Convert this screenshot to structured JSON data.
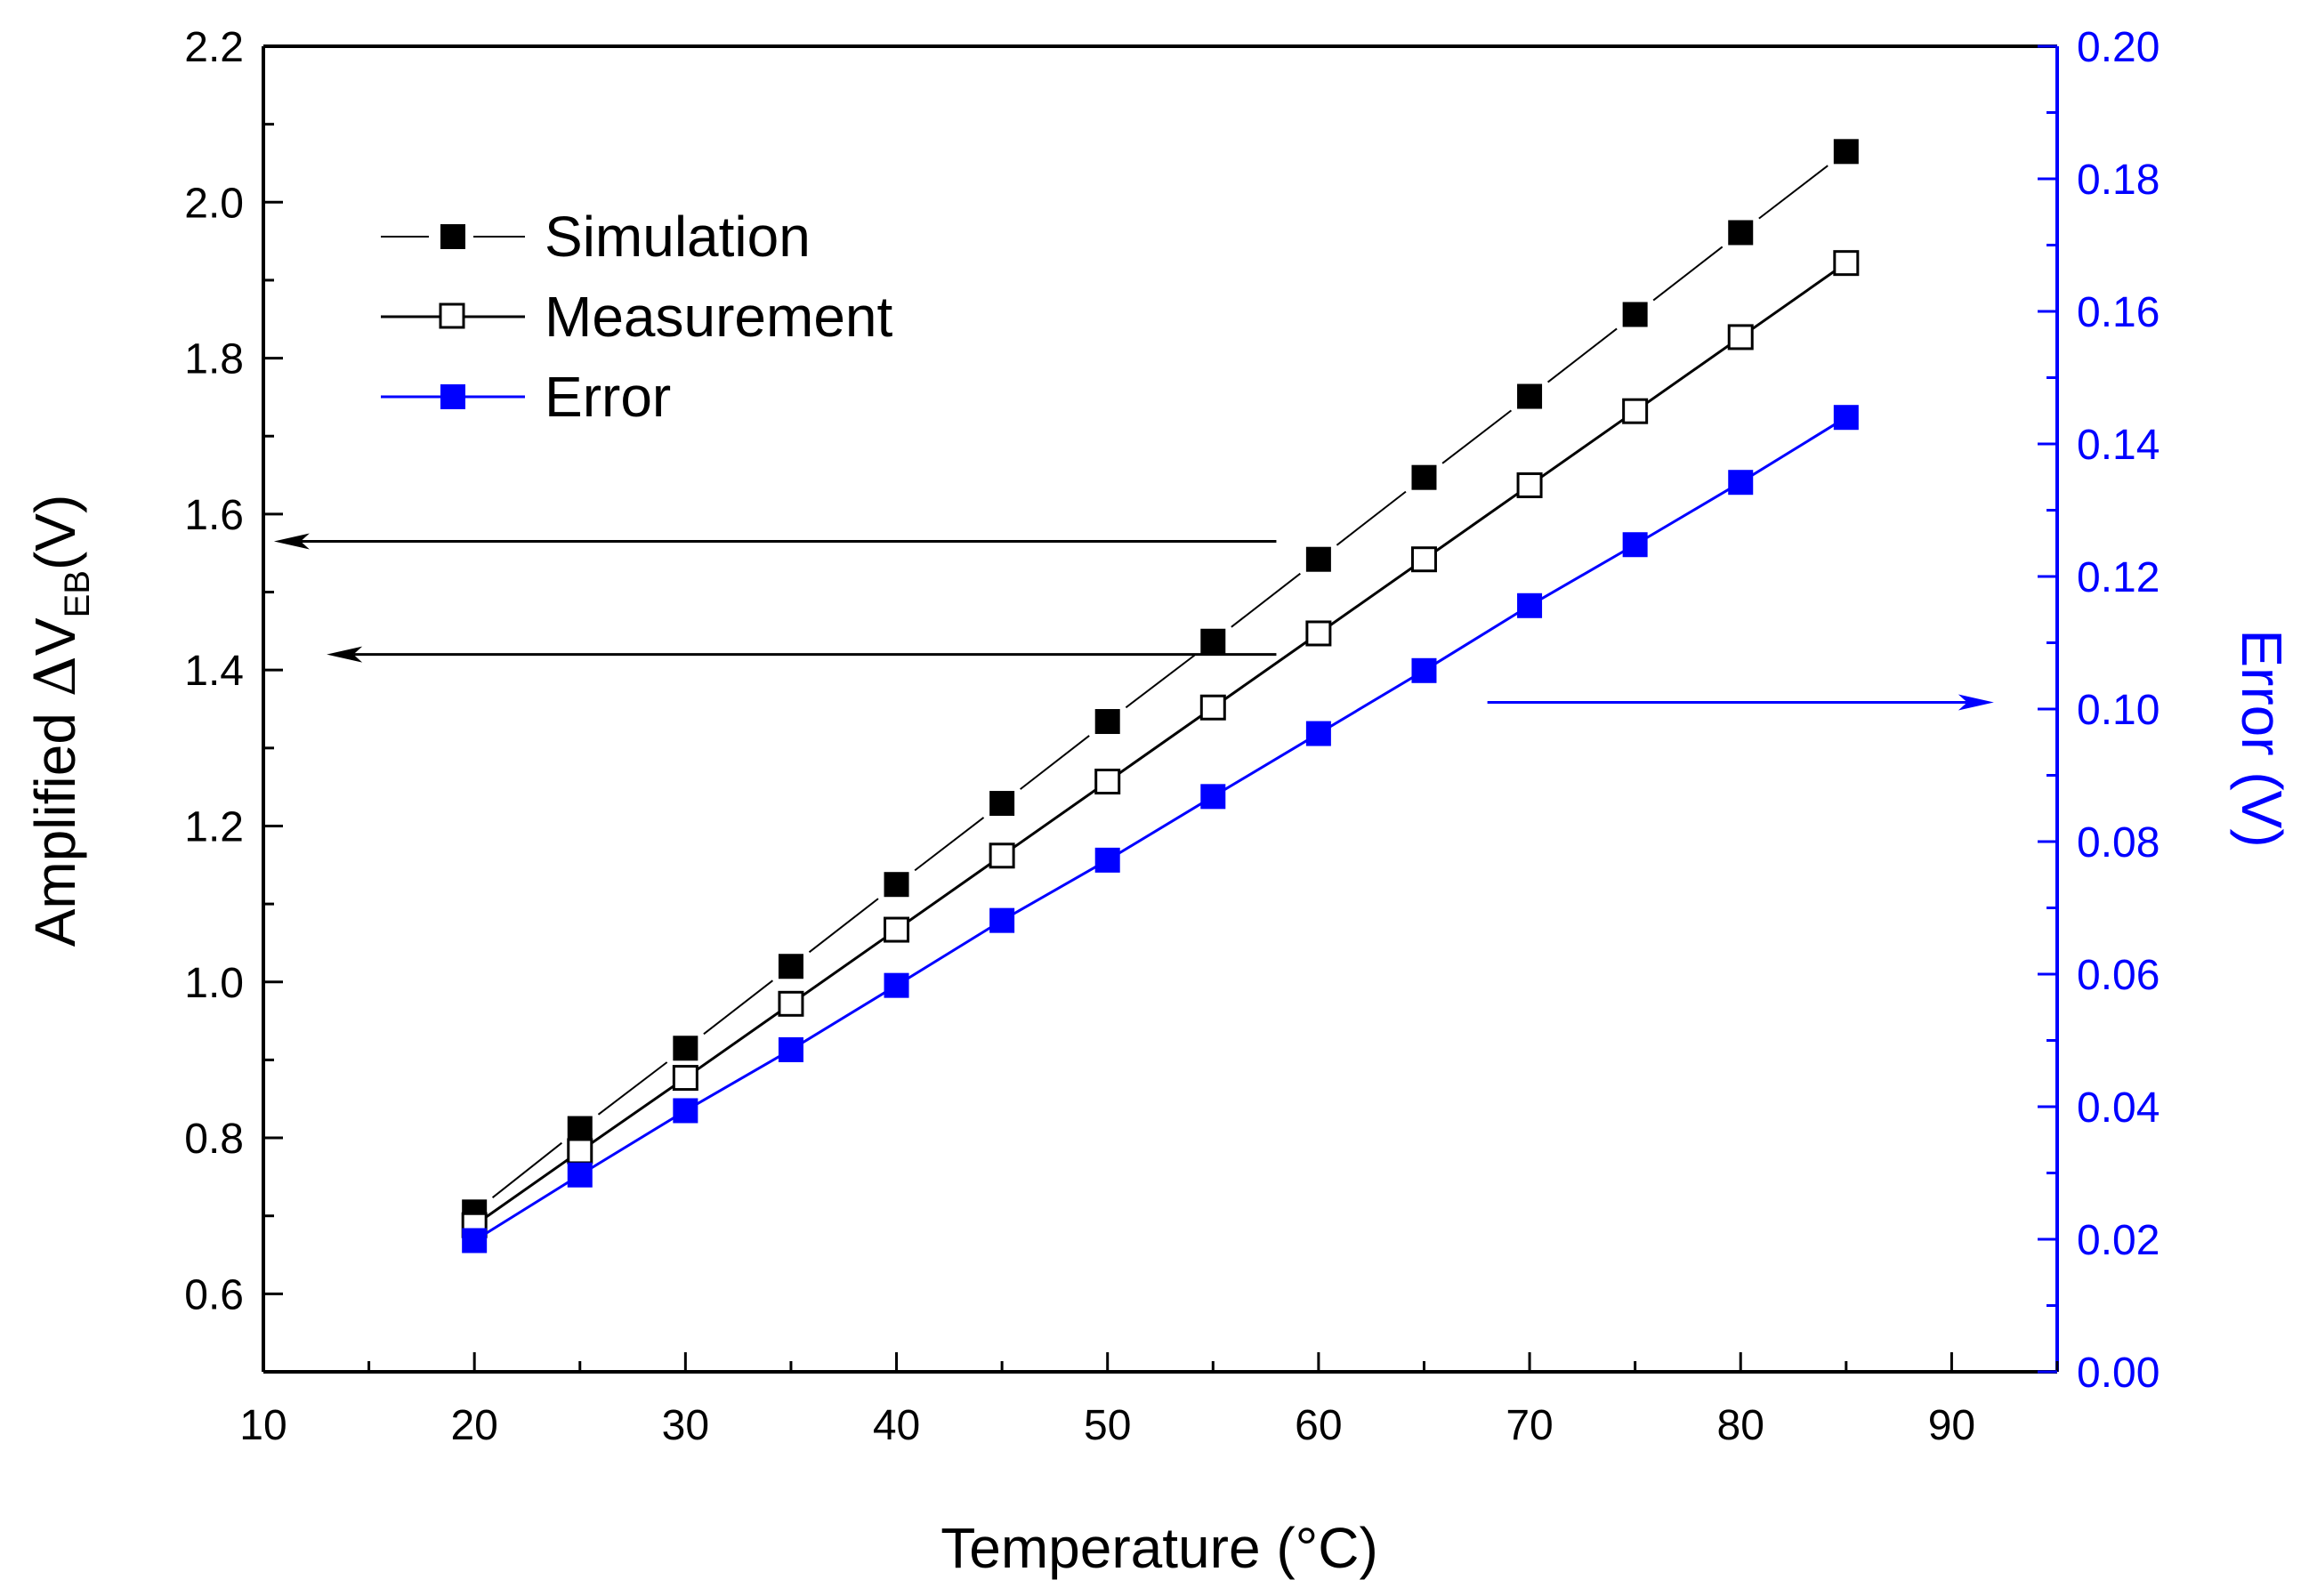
{
  "chart_data": {
    "type": "line",
    "x_label": "Temperature (°C)",
    "y_label_left": {
      "prefix": "Amplified ",
      "delta": "Δ",
      "var": "V",
      "subscript": "EB",
      "suffix": "(V)"
    },
    "y_label_right": "Error (V)",
    "x_range": [
      10,
      95
    ],
    "y_left_range": [
      0.5,
      2.2
    ],
    "y_right_range": [
      0.0,
      0.2
    ],
    "x_ticks": [
      "10",
      "20",
      "30",
      "40",
      "50",
      "60",
      "70",
      "80",
      "90"
    ],
    "y_left_ticks": [
      "0.6",
      "0.8",
      "1.0",
      "1.2",
      "1.4",
      "1.6",
      "1.8",
      "2.0",
      "2.2"
    ],
    "y_right_ticks": [
      "0.00",
      "0.02",
      "0.04",
      "0.06",
      "0.08",
      "0.10",
      "0.12",
      "0.14",
      "0.16",
      "0.18",
      "0.20"
    ],
    "x": [
      20,
      25,
      30,
      35,
      40,
      45,
      50,
      55,
      60,
      65,
      70,
      75,
      80,
      85
    ],
    "series": [
      {
        "name": "Simulation",
        "axis": "left",
        "marker": "filled-square",
        "color": "#000000",
        "line": "gapped",
        "values": [
          0.705,
          0.812,
          0.915,
          1.02,
          1.125,
          1.229,
          1.334,
          1.437,
          1.542,
          1.647,
          1.751,
          1.856,
          1.961,
          2.065
        ]
      },
      {
        "name": "Measurement",
        "axis": "left",
        "marker": "open-square",
        "color": "#000000",
        "line": "solid",
        "values": [
          0.688,
          0.783,
          0.877,
          0.972,
          1.067,
          1.162,
          1.257,
          1.352,
          1.447,
          1.542,
          1.637,
          1.732,
          1.827,
          1.922
        ]
      },
      {
        "name": "Error",
        "axis": "right",
        "marker": "filled-square",
        "color": "#0000ff",
        "line": "solid",
        "values": [
          0.0198,
          0.0297,
          0.0394,
          0.0486,
          0.0583,
          0.0681,
          0.0772,
          0.0868,
          0.0963,
          0.1058,
          0.1156,
          0.1248,
          0.1342,
          0.144
        ]
      }
    ],
    "annotations": [
      {
        "type": "arrow",
        "points_to": "left-axis",
        "color": "#000000",
        "from_x": 58,
        "to_x": 10.5,
        "y_left": 1.565
      },
      {
        "type": "arrow",
        "points_to": "left-axis",
        "color": "#000000",
        "from_x": 58,
        "to_x": 13,
        "y_left": 1.42
      },
      {
        "type": "arrow",
        "points_to": "right-axis",
        "color": "#0000ff",
        "from_x": 68,
        "to_x": 92,
        "y_right": 0.101
      }
    ],
    "legend_position": "top-left"
  },
  "colors": {
    "left": "#000000",
    "right": "#0000ff"
  }
}
